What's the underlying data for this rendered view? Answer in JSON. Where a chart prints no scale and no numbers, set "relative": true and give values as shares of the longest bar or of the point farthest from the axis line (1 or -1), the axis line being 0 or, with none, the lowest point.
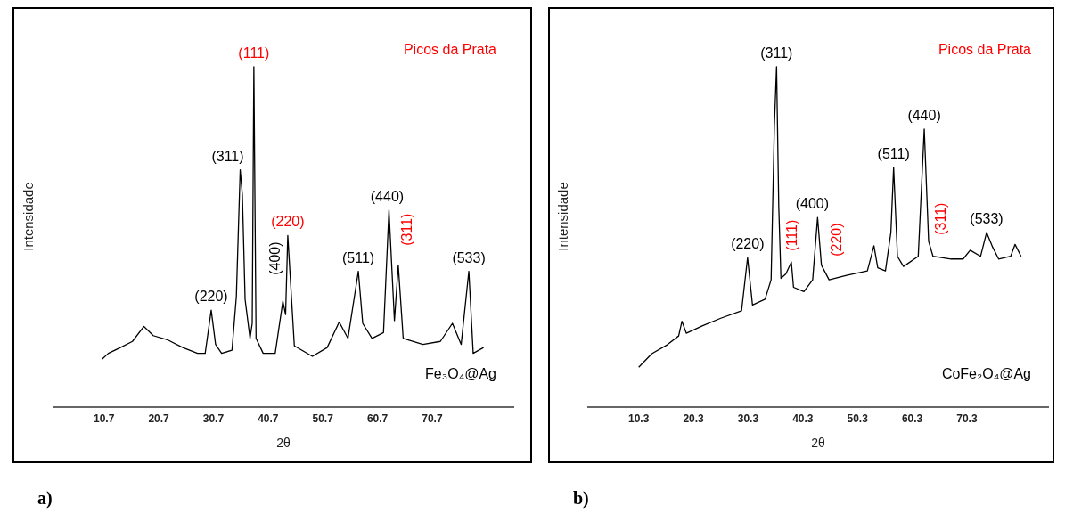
{
  "chart_data": [
    {
      "type": "line",
      "title": "a)",
      "xlabel": "2θ",
      "ylabel": "Intensidade",
      "relative": true,
      "tick_labels": "x",
      "color": "#000000",
      "xlim": [
        1.3,
        85.7
      ],
      "xticks": [
        10.7,
        20.7,
        30.7,
        40.7,
        50.7,
        60.7,
        70.7
      ],
      "x": [
        10.3,
        11.5,
        13.7,
        15.9,
        18.0,
        19.7,
        22.4,
        25.1,
        27.8,
        29.2,
        30.3,
        31.1,
        32.2,
        34.1,
        34.9,
        35.6,
        36.0,
        36.5,
        37.4,
        37.8,
        38.1,
        38.5,
        39.8,
        42.0,
        43.4,
        43.9,
        44.3,
        45.5,
        48.8,
        51.5,
        53.7,
        55.3,
        57.2,
        58.0,
        59.7,
        61.8,
        62.8,
        63.8,
        64.5,
        65.4,
        69.0,
        72.2,
        74.4,
        76.0,
        77.4,
        78.2,
        80.1
      ],
      "values": [
        0.14,
        0.158,
        0.175,
        0.193,
        0.237,
        0.21,
        0.197,
        0.175,
        0.158,
        0.158,
        0.285,
        0.184,
        0.158,
        0.167,
        0.325,
        0.697,
        0.623,
        0.316,
        0.202,
        0.246,
        1.0,
        0.202,
        0.158,
        0.158,
        0.311,
        0.272,
        0.504,
        0.18,
        0.149,
        0.175,
        0.25,
        0.202,
        0.399,
        0.246,
        0.202,
        0.219,
        0.579,
        0.254,
        0.417,
        0.202,
        0.184,
        0.193,
        0.246,
        0.184,
        0.399,
        0.158,
        0.175
      ],
      "annotations": [
        {
          "text": "(220)",
          "x": 30.3,
          "y": 0.285
        },
        {
          "text": "(311)",
          "x": 35.6,
          "y": 0.697
        },
        {
          "text": "(111)",
          "x": 38.1,
          "y": 1.0
        },
        {
          "text": "(400)",
          "x": 43.4,
          "y": 0.311
        },
        {
          "text": "(220)",
          "x": 44.3,
          "y": 0.504
        },
        {
          "text": "(511)",
          "x": 57.2,
          "y": 0.399
        },
        {
          "text": "(440)",
          "x": 62.8,
          "y": 0.579
        },
        {
          "text": "(311)",
          "x": 64.5,
          "y": 0.417
        },
        {
          "text": "(533)",
          "x": 77.4,
          "y": 0.399
        },
        "Picos da Prata",
        "Fe₃O₄@Ag"
      ]
    },
    {
      "type": "line",
      "title": "b)",
      "xlabel": "2θ",
      "ylabel": "Intensidade",
      "relative": true,
      "tick_labels": "x",
      "color": "#000000",
      "xlim": [
        0.9,
        85.3
      ],
      "xticks": [
        10.3,
        20.3,
        30.3,
        40.3,
        50.3,
        60.3,
        70.3
      ],
      "x": [
        10.3,
        12.7,
        15.5,
        17.6,
        18.2,
        19.0,
        22.0,
        25.3,
        29.1,
        30.2,
        31.1,
        33.4,
        34.5,
        35.1,
        35.5,
        35.9,
        36.3,
        37.2,
        38.2,
        38.6,
        40.5,
        42.1,
        43.0,
        43.7,
        45.1,
        48.3,
        52.1,
        53.3,
        54.0,
        55.4,
        56.4,
        56.9,
        57.6,
        58.7,
        61.4,
        62.5,
        63.3,
        64.1,
        67.4,
        69.6,
        70.9,
        72.8,
        73.9,
        75.0,
        76.1,
        78.3,
        79.1,
        80.2
      ],
      "values": [
        0.117,
        0.157,
        0.183,
        0.209,
        0.252,
        0.217,
        0.239,
        0.261,
        0.283,
        0.439,
        0.3,
        0.317,
        0.374,
        0.826,
        1.0,
        0.591,
        0.378,
        0.391,
        0.426,
        0.352,
        0.339,
        0.374,
        0.557,
        0.417,
        0.374,
        0.387,
        0.4,
        0.474,
        0.409,
        0.4,
        0.513,
        0.704,
        0.443,
        0.413,
        0.443,
        0.817,
        0.487,
        0.443,
        0.435,
        0.435,
        0.461,
        0.443,
        0.513,
        0.47,
        0.435,
        0.443,
        0.478,
        0.443
      ],
      "annotations": [
        {
          "text": "(220)",
          "x": 30.2,
          "y": 0.439
        },
        {
          "text": "(311)",
          "x": 35.5,
          "y": 1.0
        },
        {
          "text": "(111)",
          "x": 38.2,
          "y": 0.426
        },
        {
          "text": "(400)",
          "x": 43.0,
          "y": 0.557
        },
        {
          "text": "(220)",
          "x": 45.1,
          "y": 0.374
        },
        {
          "text": "(511)",
          "x": 56.9,
          "y": 0.704
        },
        {
          "text": "(440)",
          "x": 62.5,
          "y": 0.817
        },
        {
          "text": "(311)",
          "x": 64.1,
          "y": 0.443
        },
        {
          "text": "(533)",
          "x": 73.9,
          "y": 0.513
        },
        "Picos da Prata",
        "CoFe₂O₄@Ag"
      ]
    }
  ]
}
